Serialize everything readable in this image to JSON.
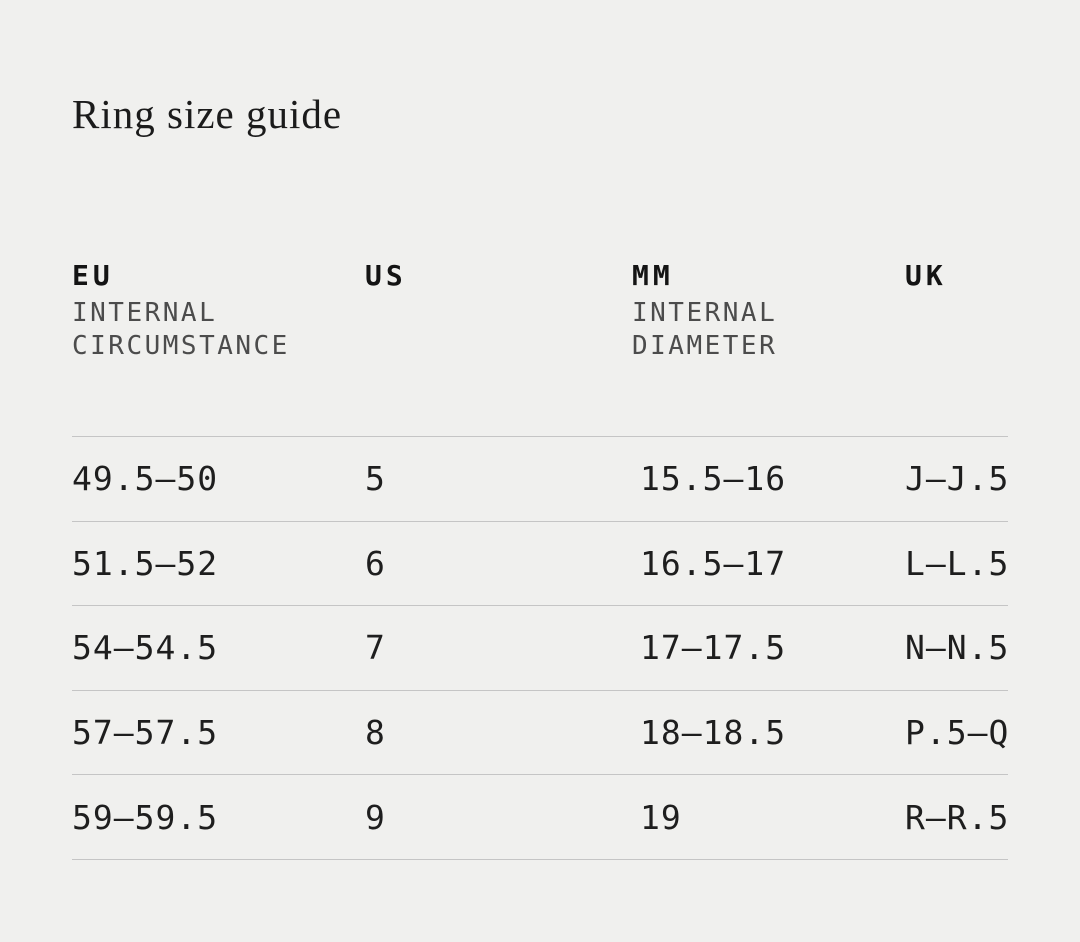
{
  "title": "Ring size guide",
  "colors": {
    "background": "#f0f0ee",
    "divider": "#c5c5c5",
    "heading_text": "#141414",
    "subheading_text": "#4c4c4c",
    "body_text": "#1e1e1e"
  },
  "table": {
    "columns": [
      {
        "label": "EU",
        "sublines": [
          "INTERNAL",
          "CIRCUMSTANCE"
        ]
      },
      {
        "label": "US",
        "sublines": []
      },
      {
        "label": "MM",
        "sublines": [
          "INTERNAL",
          "DIAMETER"
        ]
      },
      {
        "label": "UK",
        "sublines": []
      }
    ],
    "rows": [
      [
        "49.5—50",
        "5",
        "15.5—16",
        "J—J.5"
      ],
      [
        "51.5—52",
        "6",
        "16.5—17",
        "L—L.5"
      ],
      [
        "54—54.5",
        "7",
        "17—17.5",
        "N—N.5"
      ],
      [
        "57—57.5",
        "8",
        "18—18.5",
        "P.5—Q"
      ],
      [
        "59—59.5",
        "9",
        "19",
        "R—R.5"
      ]
    ]
  }
}
